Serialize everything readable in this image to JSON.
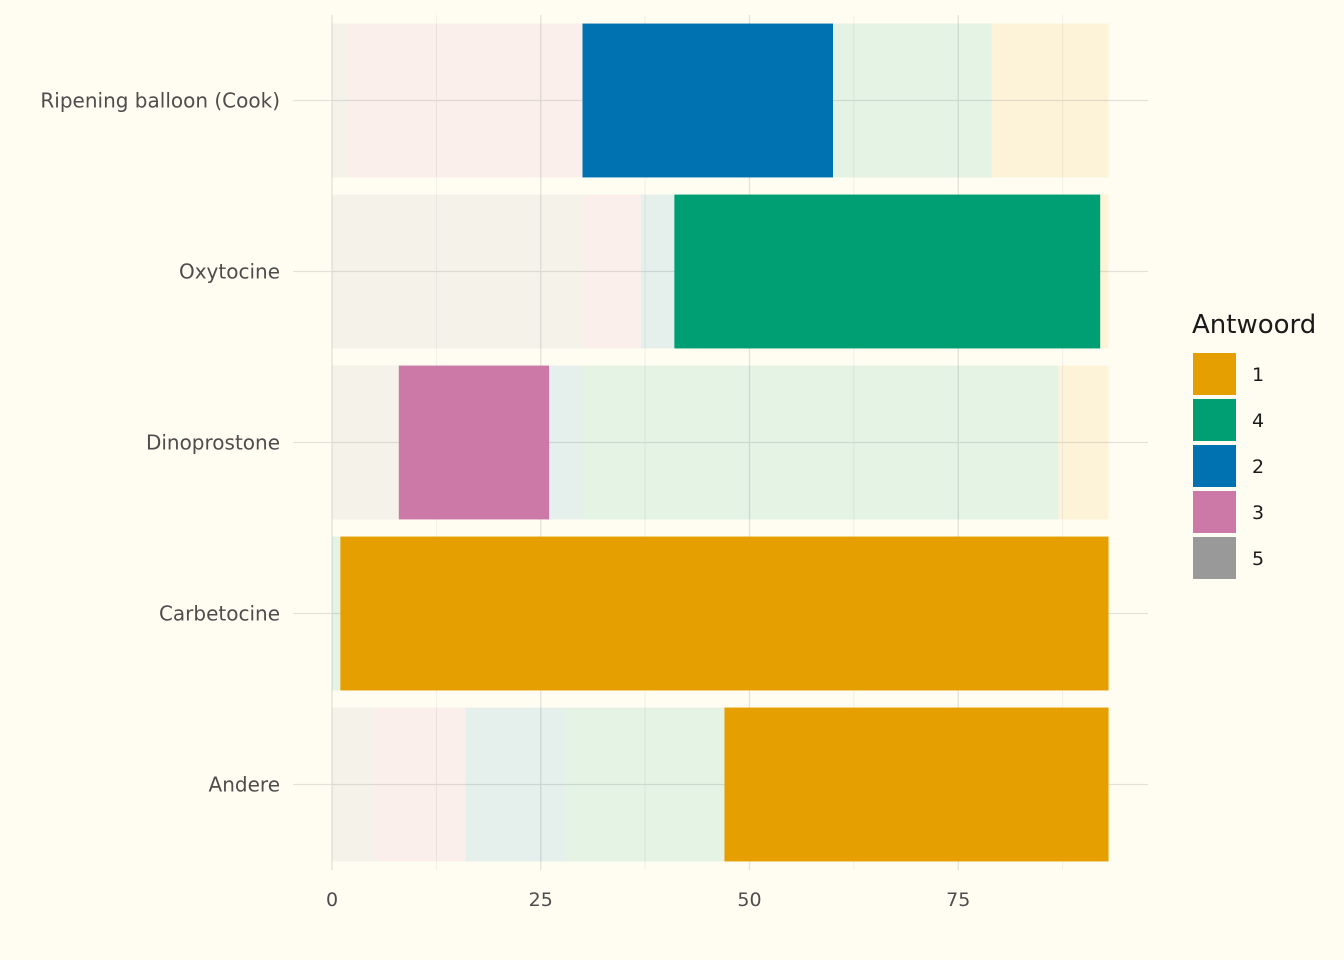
{
  "chart_data": {
    "type": "bar",
    "orientation": "horizontal",
    "stacked": true,
    "xlim": [
      0,
      97.5
    ],
    "x_ticks": [
      0,
      25,
      50,
      75
    ],
    "x_tick_labels": [
      "0",
      "25",
      "50",
      "75"
    ],
    "categories": [
      "Ripening balloon (Cook)",
      "Oxytocine",
      "Dinoprostone",
      "Carbetocine",
      "Andere"
    ],
    "segment_order": [
      "5",
      "3",
      "2",
      "4",
      "1"
    ],
    "series": [
      {
        "name": "5",
        "color": "#999999",
        "values": [
          2,
          30,
          8,
          0,
          5
        ]
      },
      {
        "name": "3",
        "color": "#cc79a7",
        "values": [
          28,
          7,
          18,
          0,
          11
        ]
      },
      {
        "name": "2",
        "color": "#0072b2",
        "values": [
          30,
          4,
          4,
          0,
          12
        ]
      },
      {
        "name": "4",
        "color": "#009e73",
        "values": [
          19,
          51,
          57,
          1,
          19
        ]
      },
      {
        "name": "1",
        "color": "#e69f00",
        "values": [
          14,
          1,
          6,
          92,
          46
        ]
      }
    ],
    "highlight": {
      "Ripening balloon (Cook)": "2",
      "Oxytocine": "4",
      "Dinoprostone": "3",
      "Carbetocine": "1",
      "Andere": "1"
    },
    "faded_opacity": 0.1,
    "grid": true,
    "legend": {
      "title": "Antwoord",
      "position": "right",
      "entries": [
        {
          "label": "1",
          "color": "#e69f00"
        },
        {
          "label": "4",
          "color": "#009e73"
        },
        {
          "label": "2",
          "color": "#0072b2"
        },
        {
          "label": "3",
          "color": "#cc79a7"
        },
        {
          "label": "5",
          "color": "#999999"
        }
      ]
    }
  }
}
